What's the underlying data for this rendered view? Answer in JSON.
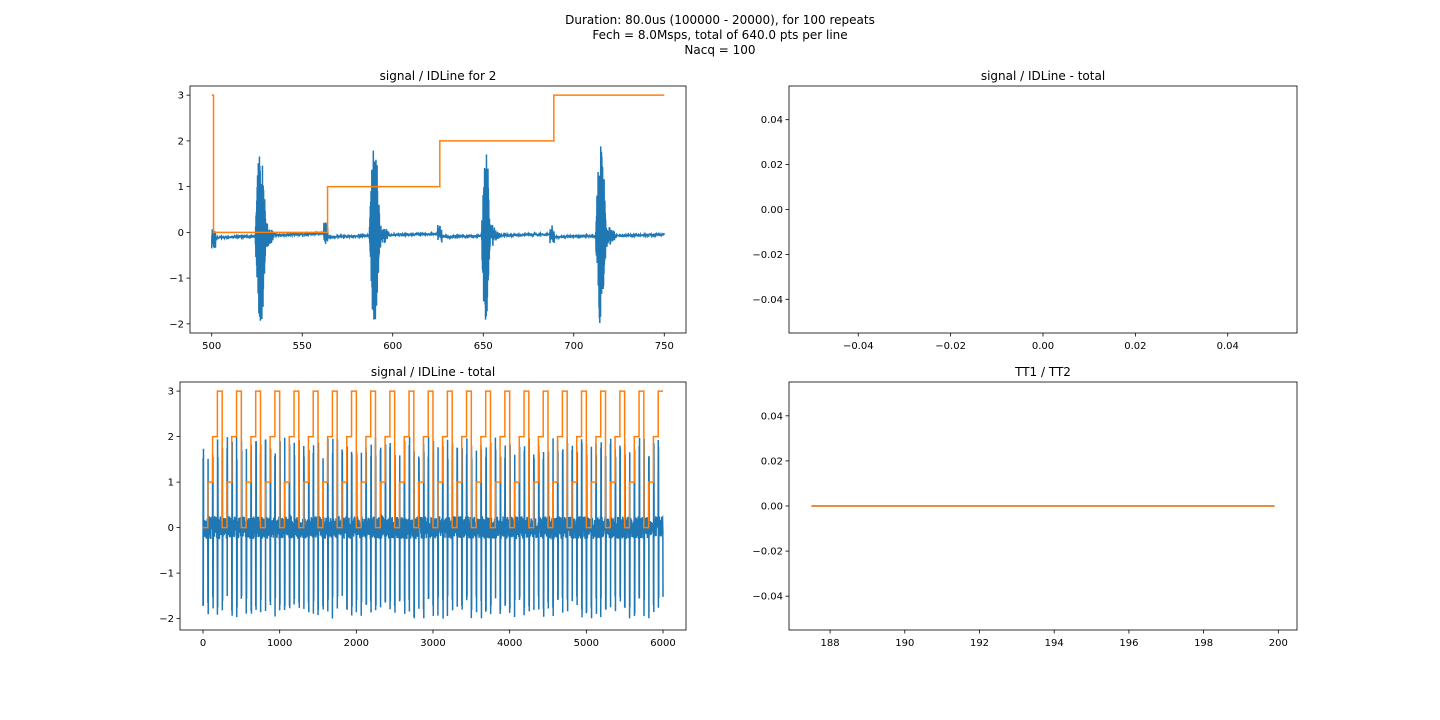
{
  "figure": {
    "suptitle": [
      "Duration: 80.0us (100000 - 20000), for 100 repeats",
      "Fech = 8.0Msps, total of 640.0 pts per line",
      "Nacq = 100"
    ]
  },
  "chart_data": [
    {
      "id": "ax1",
      "type": "line",
      "title": "signal / IDLine for 2",
      "xlim": [
        488,
        762
      ],
      "ylim": [
        -2.2,
        3.2
      ],
      "xticks": [
        500,
        550,
        600,
        650,
        700,
        750
      ],
      "yticks": [
        -2,
        -1,
        0,
        1,
        2,
        3
      ],
      "xticklabels": [
        "500",
        "550",
        "600",
        "650",
        "700",
        "750"
      ],
      "yticklabels": [
        "−2",
        "−1",
        "0",
        "1",
        "2",
        "3"
      ],
      "series": [
        {
          "color": "#1f77b4",
          "kind": "burst_signal",
          "x_range": [
            500,
            750
          ],
          "bursts": [
            {
              "x": [
                524,
                530
              ],
              "amp": 2.0
            },
            {
              "x": [
                587,
                593
              ],
              "amp": 2.0
            },
            {
              "x": [
                649,
                654
              ],
              "amp": 2.0
            },
            {
              "x": [
                712,
                718
              ],
              "amp": 2.0
            }
          ],
          "small_bursts": [
            {
              "x": 501,
              "amp": 0.25
            },
            {
              "x": 563,
              "amp": 0.25
            },
            {
              "x": 626,
              "amp": 0.2
            },
            {
              "x": 688,
              "amp": 0.2
            }
          ],
          "baseline": {
            "x": [
              500,
              563,
              564,
              626,
              627,
              688,
              689,
              750
            ],
            "y": [
              -0.12,
              -0.02,
              -0.1,
              -0.03,
              -0.1,
              -0.04,
              -0.1,
              -0.05
            ]
          }
        },
        {
          "color": "#ff7f0e",
          "kind": "step",
          "x": [
            500,
            501,
            501,
            564,
            564,
            626,
            626,
            689,
            689,
            750
          ],
          "y": [
            3,
            3,
            0,
            0,
            1,
            1,
            2,
            2,
            3,
            3
          ]
        }
      ]
    },
    {
      "id": "ax2",
      "type": "line",
      "title": "signal / IDLine - total",
      "xlim": [
        -0.055,
        0.055
      ],
      "ylim": [
        -0.055,
        0.055
      ],
      "xticks": [
        -0.04,
        -0.02,
        0.0,
        0.02,
        0.04
      ],
      "yticks": [
        -0.04,
        -0.02,
        0.0,
        0.02,
        0.04
      ],
      "xticklabels": [
        "−0.04",
        "−0.02",
        "0.00",
        "0.02",
        "0.04"
      ],
      "yticklabels": [
        "−0.04",
        "−0.02",
        "0.00",
        "0.02",
        "0.04"
      ],
      "series": []
    },
    {
      "id": "ax3",
      "type": "line",
      "title": "signal / IDLine - total",
      "xlim": [
        -300,
        6300
      ],
      "ylim": [
        -2.25,
        3.2
      ],
      "xticks": [
        0,
        1000,
        2000,
        3000,
        4000,
        5000,
        6000
      ],
      "yticks": [
        -2,
        -1,
        0,
        1,
        2,
        3
      ],
      "xticklabels": [
        "0",
        "1000",
        "2000",
        "3000",
        "4000",
        "5000",
        "6000"
      ],
      "yticklabels": [
        "−2",
        "−1",
        "0",
        "1",
        "2",
        "3"
      ],
      "series": [
        {
          "color": "#1f77b4",
          "kind": "dense_burst_signal",
          "x_range": [
            0,
            6000
          ],
          "burst_period": 62.5,
          "amp": 2.0
        },
        {
          "color": "#ff7f0e",
          "kind": "periodic_step",
          "x_range": [
            0,
            6000
          ],
          "period": 250,
          "levels": [
            0,
            1,
            2,
            3
          ]
        }
      ]
    },
    {
      "id": "ax4",
      "type": "line",
      "title": "TT1 / TT2",
      "xlim": [
        186.9,
        200.5
      ],
      "ylim": [
        -0.055,
        0.055
      ],
      "xticks": [
        188,
        190,
        192,
        194,
        196,
        198,
        200
      ],
      "yticks": [
        -0.04,
        -0.02,
        0.0,
        0.02,
        0.04
      ],
      "xticklabels": [
        "188",
        "190",
        "192",
        "194",
        "196",
        "198",
        "200"
      ],
      "yticklabels": [
        "−0.04",
        "−0.02",
        "0.00",
        "0.02",
        "0.04"
      ],
      "series": [
        {
          "color": "#1f77b4",
          "kind": "line",
          "x": [
            187.5,
            199.9
          ],
          "y": [
            0,
            0
          ]
        },
        {
          "color": "#ff7f0e",
          "kind": "line",
          "x": [
            187.5,
            199.9
          ],
          "y": [
            0,
            0
          ]
        }
      ]
    }
  ]
}
